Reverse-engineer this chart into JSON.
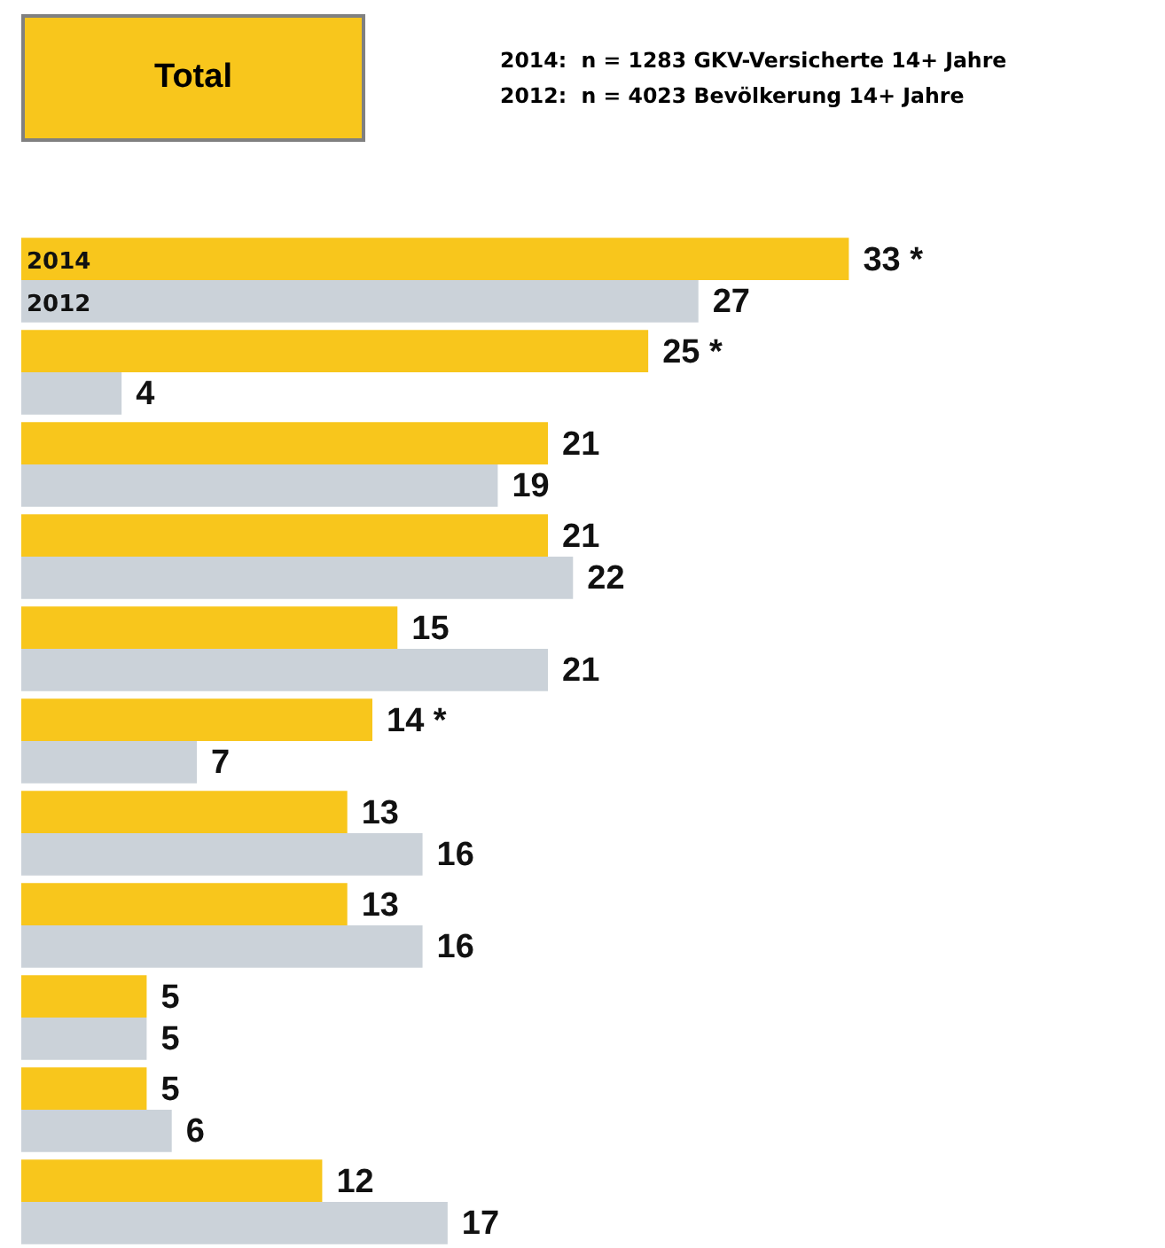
{
  "chart_data": {
    "type": "bar",
    "orientation": "horizontal",
    "title": "Total",
    "annotations": [
      "2014:  n = 1283 GKV-Versicherte 14+ Jahre",
      "2012:  n = 4023 Bevölkerung 14+ Jahre"
    ],
    "categories": [
      null,
      null,
      null,
      null,
      null,
      null,
      null,
      null,
      null,
      null,
      null
    ],
    "legend": false,
    "series": [
      {
        "name": "2014",
        "color": "#f8c61c",
        "values": [
          33,
          25,
          21,
          21,
          15,
          14,
          13,
          13,
          5,
          5,
          12
        ],
        "value_labels": [
          "33 *",
          "25 *",
          "21",
          "21",
          "15",
          "14 *",
          "13",
          "13",
          "5",
          "5",
          "12"
        ]
      },
      {
        "name": "2012",
        "color": "#cbd2d9",
        "values": [
          27,
          4,
          19,
          22,
          21,
          7,
          16,
          16,
          5,
          6,
          17
        ],
        "value_labels": [
          "27",
          "4",
          "19",
          "22",
          "21",
          "7",
          "16",
          "16",
          "5",
          "6",
          "17"
        ]
      }
    ]
  }
}
